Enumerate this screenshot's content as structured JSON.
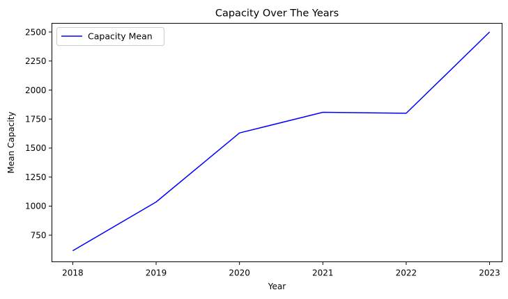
{
  "chart_data": {
    "type": "line",
    "title": "Capacity Over The Years",
    "xlabel": "Year",
    "ylabel": "Mean Capacity",
    "x": [
      2018,
      2019,
      2020,
      2021,
      2022,
      2023
    ],
    "x_ticks": [
      "2018",
      "2019",
      "2020",
      "2021",
      "2022",
      "2023"
    ],
    "y_ticks": [
      750,
      1000,
      1250,
      1500,
      1750,
      2000,
      2250,
      2500
    ],
    "xlim": [
      2017.75,
      2023.15
    ],
    "ylim": [
      520,
      2575
    ],
    "grid": false,
    "legend": {
      "placement": "top-left"
    },
    "series": [
      {
        "name": "Capacity Mean",
        "color": "#0000ff",
        "values": [
          615,
          1035,
          1630,
          1808,
          1800,
          2500
        ]
      }
    ]
  }
}
